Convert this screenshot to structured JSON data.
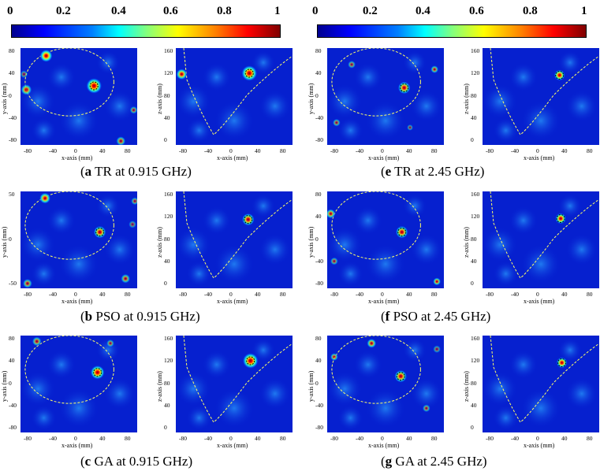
{
  "colorbar": {
    "ticks": [
      "0",
      "0.2",
      "0.4",
      "0.6",
      "0.8",
      "1"
    ]
  },
  "axes": {
    "x_label": "x-axis (mm)",
    "y_label": "y-axis (mm)",
    "z_label": "z-axis (mm)",
    "x_ticks": [
      "-80",
      "-40",
      "0",
      "40",
      "80"
    ],
    "y_ticks_a": [
      "80",
      "40",
      "0",
      "-40",
      "-80"
    ],
    "y_ticks_b": [
      "50",
      "0",
      "-50"
    ],
    "z_ticks": [
      "160",
      "120",
      "80",
      "40",
      "0"
    ]
  },
  "captions": {
    "a": {
      "letter": "a",
      "text": " TR at 0.915 GHz"
    },
    "b": {
      "letter": "b",
      "text": " PSO at 0.915 GHz"
    },
    "c": {
      "letter": "c",
      "text": " GA at 0.915 GHz"
    },
    "e": {
      "letter": "e",
      "text": " TR at 2.45 GHz"
    },
    "f": {
      "letter": "f",
      "text": " PSO at 2.45 GHz"
    },
    "g": {
      "letter": "g",
      "text": " GA at 2.45 GHz"
    }
  }
}
